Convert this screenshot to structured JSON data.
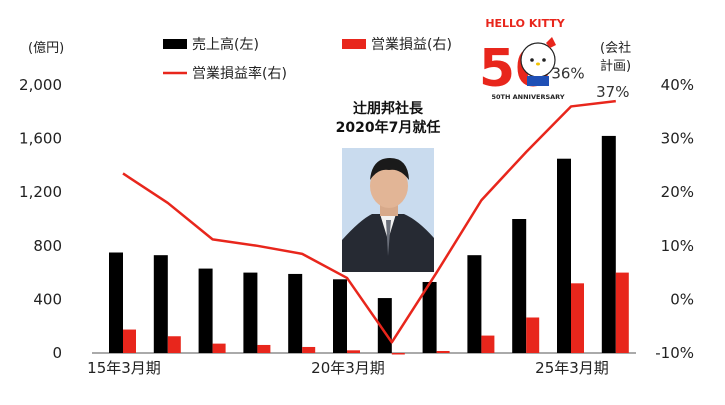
{
  "chart_data": {
    "type": "bar+line",
    "title": "",
    "categories": [
      "15年3月期",
      "",
      "",
      "",
      "",
      "20年3月期",
      "",
      "",
      "",
      "",
      "25年3月期",
      ""
    ],
    "x_tick_labels": [
      "15年3月期",
      "20年3月期",
      "25年3月期"
    ],
    "series": [
      {
        "name": "売上高(左)",
        "type": "bar",
        "axis": "left",
        "color": "#000000",
        "values": [
          750,
          730,
          630,
          600,
          590,
          550,
          410,
          530,
          730,
          1000,
          1450,
          1620
        ]
      },
      {
        "name": "営業損益(右)",
        "type": "bar",
        "axis": "left",
        "color": "#e8261c",
        "values": [
          175,
          125,
          70,
          60,
          45,
          20,
          -10,
          15,
          130,
          265,
          520,
          600
        ]
      },
      {
        "name": "営業損益率(右)",
        "type": "line",
        "axis": "right",
        "color": "#e8261c",
        "values": [
          23.5,
          18,
          11.2,
          10,
          8.5,
          4,
          -8,
          5,
          18.5,
          27.5,
          36,
          37
        ]
      }
    ],
    "left_axis": {
      "unit": "(億円)",
      "ylim": [
        0,
        2000
      ],
      "ticks": [
        "0",
        "400",
        "800",
        "1,200",
        "1,600",
        "2,000"
      ],
      "tick_values": [
        0,
        400,
        800,
        1200,
        1600,
        2000
      ]
    },
    "right_axis": {
      "ylim": [
        -10,
        40
      ],
      "ticks": [
        "-10%",
        "0%",
        "10%",
        "20%",
        "30%",
        "40%"
      ],
      "tick_values": [
        -10,
        0,
        10,
        20,
        30,
        40
      ]
    },
    "data_labels": [
      {
        "index": 10,
        "text": "36%"
      },
      {
        "index": 11,
        "text": "37%"
      }
    ],
    "plan_note": [
      "(会社",
      "計画)"
    ],
    "annotation": {
      "line1": "辻朋邦社長",
      "line2": "2020年7月就任"
    },
    "logo": {
      "brand": "HELLO KITTY",
      "number": "50",
      "sub": "50TH ANNIVERSARY"
    },
    "grid": false,
    "legend_placement": "top"
  }
}
